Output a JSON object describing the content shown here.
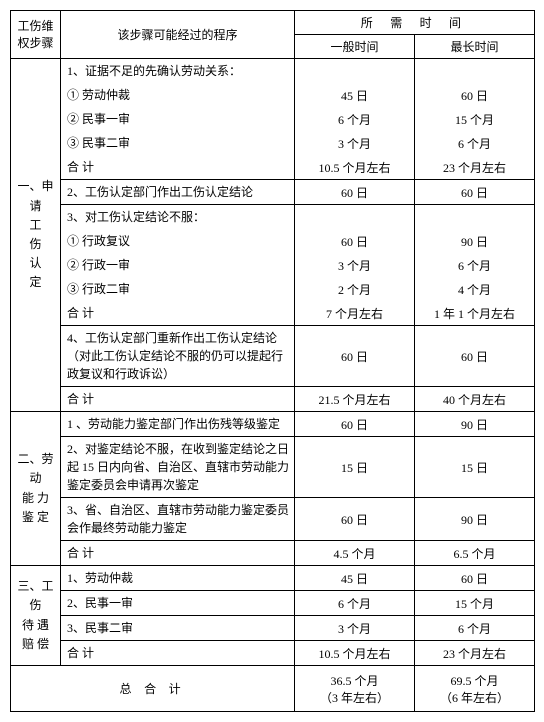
{
  "cols": {
    "c1": "工伤维\n权步骤",
    "c2": "该步骤可能经过的程序",
    "time_hdr_top": "所    需    时    间",
    "time_hdr_a": "一般时间",
    "time_hdr_b": "最长时间"
  },
  "sections": [
    {
      "label": "一、申\n请\n工\n伤\n认\n定",
      "rows": [
        {
          "step": "1、证据不足的先确认劳动关系：",
          "a": "",
          "b": "",
          "border_b": false
        },
        {
          "step": "① 劳动仲裁",
          "a": "45 日",
          "b": "60 日",
          "border_b": false
        },
        {
          "step": "② 民事一审",
          "a": "6 个月",
          "b": "15 个月",
          "border_b": false
        },
        {
          "step": "③ 民事二审",
          "a": "3 个月",
          "b": "6 个月",
          "border_b": false
        },
        {
          "step": "合    计",
          "a": "10.5 个月左右",
          "b": "23 个月左右",
          "border_b": true
        },
        {
          "step": "2、工伤认定部门作出工伤认定结论",
          "a": "60 日",
          "b": "60 日",
          "border_b": true
        },
        {
          "step": "3、对工伤认定结论不服：",
          "a": "",
          "b": "",
          "border_b": false
        },
        {
          "step": "① 行政复议",
          "a": "60 日",
          "b": "90 日",
          "border_b": false
        },
        {
          "step": "② 行政一审",
          "a": "3 个月",
          "b": "6 个月",
          "border_b": false
        },
        {
          "step": "③ 行政二审",
          "a": "2 个月",
          "b": "4 个月",
          "border_b": false
        },
        {
          "step": "合    计",
          "a": "7 个月左右",
          "b": "1 年 1 个月左右",
          "border_b": true
        },
        {
          "step": "4、工伤认定部门重新作出工伤认定结论（对此工伤认定结论不服的仍可以提起行政复议和行政诉讼）",
          "a": "60 日",
          "b": "60 日",
          "border_b": true
        },
        {
          "step": "合    计",
          "a": "21.5 个月左右",
          "b": "40 个月左右",
          "border_b": true
        }
      ]
    },
    {
      "label": "二、劳动\n能 力\n鉴 定",
      "rows": [
        {
          "step": "1 、劳动能力鉴定部门作出伤残等级鉴定",
          "a": "60 日",
          "b": "90 日",
          "border_b": true
        },
        {
          "step": "2、对鉴定结论不服，在收到鉴定结论之日起 15 日内向省、自治区、直辖市劳动能力鉴定委员会申请再次鉴定",
          "a": "15 日",
          "b": "15 日",
          "border_b": true
        },
        {
          "step": "3、省、自治区、直辖市劳动能力鉴定委员会作最终劳动能力鉴定",
          "a": "60 日",
          "b": "90 日",
          "border_b": true
        },
        {
          "step": "合    计",
          "a": "4.5 个月",
          "b": "6.5 个月",
          "border_b": true
        }
      ]
    },
    {
      "label": "三、工伤\n待 遇\n赔 偿",
      "rows": [
        {
          "step": "1、劳动仲裁",
          "a": "45 日",
          "b": "60 日",
          "border_b": true
        },
        {
          "step": "2、民事一审",
          "a": "6 个月",
          "b": "15 个月",
          "border_b": true
        },
        {
          "step": "3、民事二审",
          "a": "3 个月",
          "b": "6 个月",
          "border_b": true
        },
        {
          "step": "合   计",
          "a": "10.5 个月左右",
          "b": "23 个月左右",
          "border_b": true
        }
      ]
    }
  ],
  "total": {
    "label": "总       合       计",
    "a1": "36.5 个月",
    "a2": "（3 年左右）",
    "b1": "69.5 个月",
    "b2": "（6 年左右）"
  }
}
